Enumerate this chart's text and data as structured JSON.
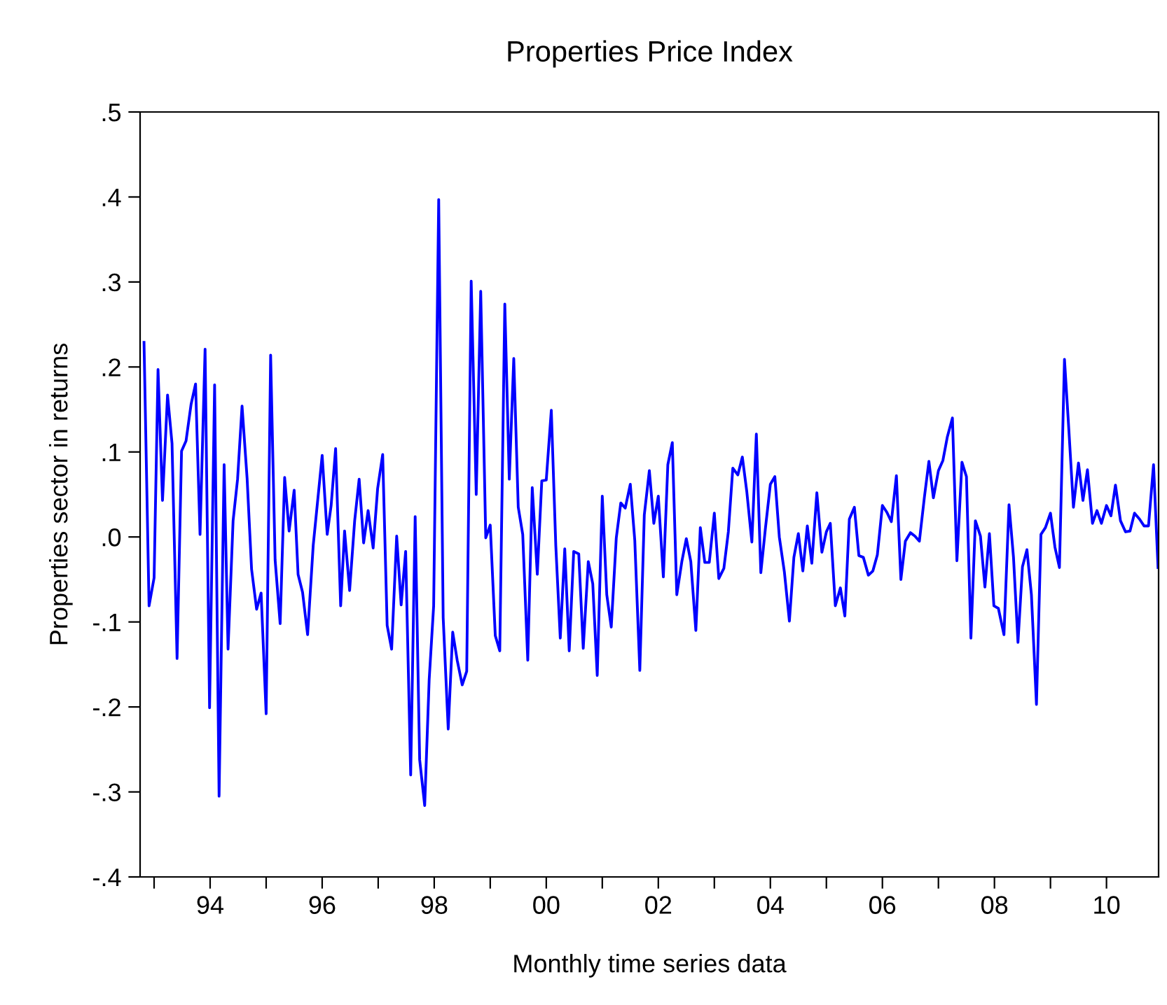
{
  "chart_data": {
    "type": "line",
    "title": "Properties Price Index",
    "xlabel": "Monthly time series data",
    "ylabel": "Properties sector in returns",
    "x": [
      1992.82,
      1992.91,
      1993.0,
      1993.07,
      1993.15,
      1993.24,
      1993.32,
      1993.41,
      1993.49,
      1993.57,
      1993.66,
      1993.74,
      1993.82,
      1993.91,
      1993.99,
      1994.08,
      1994.16,
      1994.25,
      1994.32,
      1994.41,
      1994.49,
      1994.57,
      1994.66,
      1994.74,
      1994.83,
      1994.91,
      1995.0,
      1995.08,
      1995.16,
      1995.25,
      1995.33,
      1995.41,
      1995.5,
      1995.57,
      1995.65,
      1995.74,
      1995.84,
      1996.0,
      1996.09,
      1996.16,
      1996.24,
      1996.33,
      1996.4,
      1996.49,
      1996.58,
      1996.66,
      1996.74,
      1996.82,
      1996.91,
      1996.99,
      1997.08,
      1997.16,
      1997.24,
      1997.33,
      1997.41,
      1997.49,
      1997.58,
      1997.66,
      1997.74,
      1997.83,
      1997.91,
      1997.99,
      1998.08,
      1998.16,
      1998.25,
      1998.33,
      1998.41,
      1998.5,
      1998.58,
      1998.66,
      1998.75,
      1998.83,
      1998.92,
      1999.0,
      1999.09,
      1999.17,
      1999.26,
      1999.34,
      1999.42,
      1999.5,
      1999.58,
      1999.67,
      1999.75,
      1999.84,
      1999.92,
      2000.0,
      2000.09,
      2000.17,
      2000.25,
      2000.33,
      2000.41,
      2000.49,
      2000.58,
      2000.66,
      2000.75,
      2000.83,
      2000.91,
      2001.0,
      2001.08,
      2001.16,
      2001.25,
      2001.33,
      2001.41,
      2001.5,
      2001.58,
      2001.67,
      2001.75,
      2001.84,
      2001.92,
      2002.0,
      2002.09,
      2002.17,
      2002.25,
      2002.33,
      2002.42,
      2002.5,
      2002.58,
      2002.67,
      2002.75,
      2002.83,
      2002.91,
      2003.0,
      2003.08,
      2003.17,
      2003.25,
      2003.33,
      2003.42,
      2003.5,
      2003.58,
      2003.67,
      2003.75,
      2003.83,
      2003.91,
      2004.0,
      2004.08,
      2004.16,
      2004.25,
      2004.34,
      2004.42,
      2004.5,
      2004.58,
      2004.66,
      2004.74,
      2004.83,
      2004.92,
      2005.0,
      2005.07,
      2005.16,
      2005.25,
      2005.33,
      2005.41,
      2005.5,
      2005.58,
      2005.66,
      2005.75,
      2005.83,
      2005.91,
      2006.0,
      2006.08,
      2006.16,
      2006.25,
      2006.33,
      2006.41,
      2006.5,
      2006.58,
      2006.66,
      2006.75,
      2006.83,
      2006.91,
      2007.0,
      2007.08,
      2007.16,
      2007.25,
      2007.33,
      2007.42,
      2007.5,
      2007.58,
      2007.66,
      2007.75,
      2007.83,
      2007.91,
      2007.99,
      2008.07,
      2008.17,
      2008.26,
      2008.34,
      2008.42,
      2008.5,
      2008.58,
      2008.66,
      2008.75,
      2008.83,
      2008.91,
      2009.0,
      2009.08,
      2009.16,
      2009.25,
      2009.33,
      2009.41,
      2009.5,
      2009.58,
      2009.66,
      2009.75,
      2009.83,
      2009.91,
      2010.0,
      2010.08,
      2010.16,
      2010.25,
      2010.34,
      2010.42,
      2010.5,
      2010.59,
      2010.67,
      2010.75,
      2010.84,
      2010.92
    ],
    "series": [
      {
        "color": "#0000ff",
        "values": [
          0.229,
          -0.081,
          -0.048,
          0.197,
          0.043,
          0.167,
          0.11,
          -0.143,
          0.101,
          0.113,
          0.156,
          0.18,
          0.003,
          0.221,
          -0.201,
          0.179,
          -0.305,
          0.085,
          -0.132,
          0.019,
          0.068,
          0.154,
          0.069,
          -0.038,
          -0.085,
          -0.066,
          -0.208,
          0.214,
          -0.027,
          -0.102,
          0.07,
          0.007,
          0.055,
          -0.044,
          -0.065,
          -0.115,
          -0.01,
          0.096,
          0.003,
          0.037,
          0.104,
          -0.081,
          0.007,
          -0.063,
          0.019,
          0.068,
          -0.007,
          0.031,
          -0.013,
          0.057,
          0.097,
          -0.104,
          -0.132,
          0.001,
          -0.08,
          -0.017,
          -0.28,
          0.024,
          -0.262,
          -0.316,
          -0.168,
          -0.081,
          0.397,
          -0.095,
          -0.226,
          -0.112,
          -0.145,
          -0.174,
          -0.158,
          0.301,
          0.05,
          0.289,
          -0.001,
          0.014,
          -0.116,
          -0.134,
          0.274,
          0.068,
          0.21,
          0.035,
          0.003,
          -0.145,
          0.058,
          -0.044,
          0.066,
          0.067,
          0.149,
          -0.01,
          -0.119,
          -0.014,
          -0.134,
          -0.017,
          -0.02,
          -0.131,
          -0.029,
          -0.055,
          -0.163,
          0.048,
          -0.068,
          -0.106,
          -0.001,
          0.04,
          0.034,
          0.062,
          -0.004,
          -0.157,
          0.026,
          0.078,
          0.016,
          0.048,
          -0.047,
          0.085,
          0.111,
          -0.068,
          -0.029,
          -0.002,
          -0.029,
          -0.11,
          0.011,
          -0.03,
          -0.03,
          0.028,
          -0.049,
          -0.037,
          0.006,
          0.081,
          0.073,
          0.094,
          0.053,
          -0.006,
          0.121,
          -0.042,
          0.009,
          0.062,
          0.071,
          0.0,
          -0.041,
          -0.099,
          -0.024,
          0.004,
          -0.04,
          0.013,
          -0.031,
          0.052,
          -0.018,
          0.006,
          0.016,
          -0.081,
          -0.06,
          -0.093,
          0.021,
          0.035,
          -0.022,
          -0.024,
          -0.045,
          -0.04,
          -0.021,
          0.037,
          0.029,
          0.018,
          0.072,
          -0.05,
          -0.005,
          0.005,
          0.001,
          -0.005,
          0.047,
          0.089,
          0.046,
          0.078,
          0.09,
          0.118,
          0.14,
          -0.028,
          0.088,
          0.071,
          -0.119,
          0.019,
          0.001,
          -0.059,
          0.004,
          -0.081,
          -0.084,
          -0.115,
          0.038,
          -0.024,
          -0.124,
          -0.035,
          -0.015,
          -0.068,
          -0.197,
          0.003,
          0.011,
          0.028,
          -0.012,
          -0.036,
          0.209,
          0.124,
          0.035,
          0.087,
          0.043,
          0.079,
          0.016,
          0.031,
          0.016,
          0.037,
          0.025,
          0.061,
          0.019,
          0.006,
          0.007,
          0.028,
          0.021,
          0.013,
          0.013,
          0.085,
          -0.036
        ]
      }
    ],
    "xlim": [
      1992.75,
      2010.93
    ],
    "xticks": [
      {
        "value": 1993,
        "label": null
      },
      {
        "value": 1994,
        "label": "94"
      },
      {
        "value": 1995,
        "label": null
      },
      {
        "value": 1996,
        "label": "96"
      },
      {
        "value": 1997,
        "label": null
      },
      {
        "value": 1998,
        "label": "98"
      },
      {
        "value": 1999,
        "label": null
      },
      {
        "value": 2000,
        "label": "00"
      },
      {
        "value": 2001,
        "label": null
      },
      {
        "value": 2002,
        "label": "02"
      },
      {
        "value": 2003,
        "label": null
      },
      {
        "value": 2004,
        "label": "04"
      },
      {
        "value": 2005,
        "label": null
      },
      {
        "value": 2006,
        "label": "06"
      },
      {
        "value": 2007,
        "label": null
      },
      {
        "value": 2008,
        "label": "08"
      },
      {
        "value": 2009,
        "label": null
      },
      {
        "value": 2010,
        "label": "10"
      }
    ],
    "ylim": [
      -0.4,
      0.5
    ],
    "yticks": [
      {
        "value": -0.4,
        "label": "-.4"
      },
      {
        "value": -0.3,
        "label": "-.3"
      },
      {
        "value": -0.2,
        "label": "-.2"
      },
      {
        "value": -0.1,
        "label": "-.1"
      },
      {
        "value": 0,
        "label": ".0"
      },
      {
        "value": 0.1,
        "label": ".1"
      },
      {
        "value": 0.2,
        "label": ".2"
      },
      {
        "value": 0.3,
        "label": ".3"
      },
      {
        "value": 0.4,
        "label": ".4"
      },
      {
        "value": 0.5,
        "label": ".5"
      }
    ],
    "grid": false
  }
}
